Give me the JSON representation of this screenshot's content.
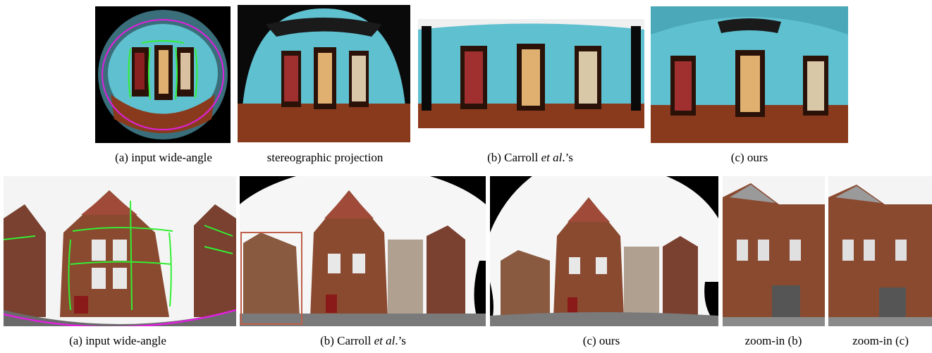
{
  "figure": {
    "row1": {
      "captions": [
        {
          "text": "(a) input wide-angle"
        },
        {
          "text": "stereographic projection"
        },
        {
          "pre": "(b) Carroll ",
          "em": "et al",
          "post": ".’s"
        },
        {
          "text": "(c) ours"
        }
      ]
    },
    "row2": {
      "captions": [
        {
          "text": "(a) input wide-angle"
        },
        {
          "pre": "(b) Carroll ",
          "em": "et al",
          "post": ".’s"
        },
        {
          "text": "(c) ours"
        },
        {
          "text": "zoom-in (b)"
        },
        {
          "text": "zoom-in (c)"
        }
      ]
    },
    "colors": {
      "line_overlay": "#33ee33",
      "boundary_overlay": "#e020e0",
      "zoom_box": "#c0604a",
      "wall": "#5fc0d0",
      "floor": "#8a3a1c",
      "brick": "#8a4a30",
      "sky": "#f4f4f4"
    }
  }
}
